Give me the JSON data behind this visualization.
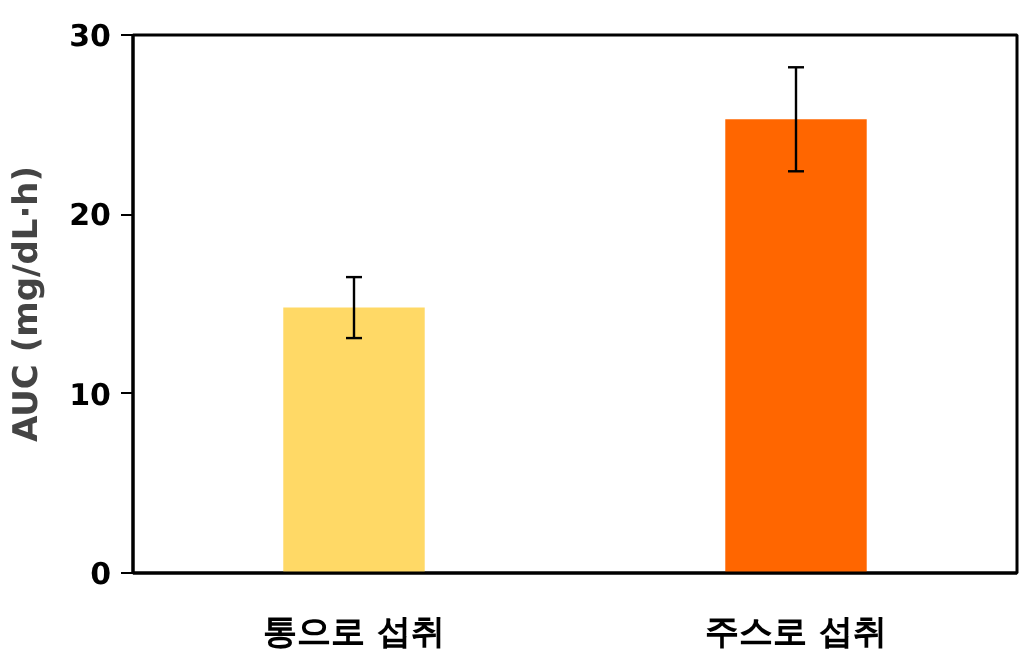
{
  "chart_data": {
    "type": "bar",
    "ylabel": "AUC (mg/dL·h)",
    "categories": [
      "통으로 섭취",
      "주스로 섭취"
    ],
    "values": [
      14.8,
      25.3
    ],
    "colors": [
      "#ffd966",
      "#ff6600"
    ],
    "errors": [
      1.7,
      2.9
    ],
    "ylim": [
      0,
      30
    ],
    "yticks": [
      0,
      10,
      20,
      30
    ],
    "grid": false
  }
}
